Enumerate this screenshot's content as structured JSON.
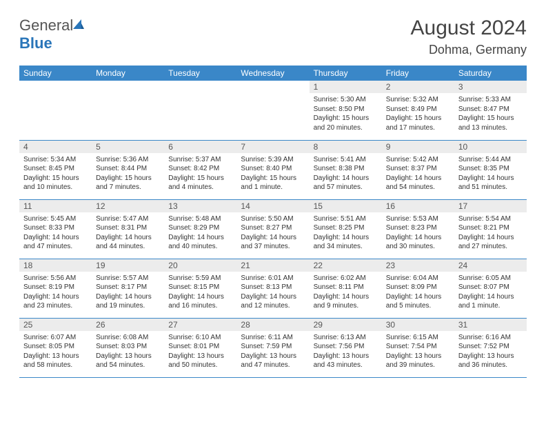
{
  "brand": {
    "part1": "General",
    "part2": "Blue"
  },
  "title": "August 2024",
  "location": "Dohma, Germany",
  "colors": {
    "header_bg": "#3a87c8",
    "header_text": "#ffffff",
    "daynum_bg": "#ececec",
    "border": "#3a87c8",
    "brand_blue": "#2975b9"
  },
  "day_headers": [
    "Sunday",
    "Monday",
    "Tuesday",
    "Wednesday",
    "Thursday",
    "Friday",
    "Saturday"
  ],
  "weeks": [
    [
      {
        "n": "",
        "sunrise": "",
        "sunset": "",
        "daylight": ""
      },
      {
        "n": "",
        "sunrise": "",
        "sunset": "",
        "daylight": ""
      },
      {
        "n": "",
        "sunrise": "",
        "sunset": "",
        "daylight": ""
      },
      {
        "n": "",
        "sunrise": "",
        "sunset": "",
        "daylight": ""
      },
      {
        "n": "1",
        "sunrise": "5:30 AM",
        "sunset": "8:50 PM",
        "daylight": "15 hours and 20 minutes."
      },
      {
        "n": "2",
        "sunrise": "5:32 AM",
        "sunset": "8:49 PM",
        "daylight": "15 hours and 17 minutes."
      },
      {
        "n": "3",
        "sunrise": "5:33 AM",
        "sunset": "8:47 PM",
        "daylight": "15 hours and 13 minutes."
      }
    ],
    [
      {
        "n": "4",
        "sunrise": "5:34 AM",
        "sunset": "8:45 PM",
        "daylight": "15 hours and 10 minutes."
      },
      {
        "n": "5",
        "sunrise": "5:36 AM",
        "sunset": "8:44 PM",
        "daylight": "15 hours and 7 minutes."
      },
      {
        "n": "6",
        "sunrise": "5:37 AM",
        "sunset": "8:42 PM",
        "daylight": "15 hours and 4 minutes."
      },
      {
        "n": "7",
        "sunrise": "5:39 AM",
        "sunset": "8:40 PM",
        "daylight": "15 hours and 1 minute."
      },
      {
        "n": "8",
        "sunrise": "5:41 AM",
        "sunset": "8:38 PM",
        "daylight": "14 hours and 57 minutes."
      },
      {
        "n": "9",
        "sunrise": "5:42 AM",
        "sunset": "8:37 PM",
        "daylight": "14 hours and 54 minutes."
      },
      {
        "n": "10",
        "sunrise": "5:44 AM",
        "sunset": "8:35 PM",
        "daylight": "14 hours and 51 minutes."
      }
    ],
    [
      {
        "n": "11",
        "sunrise": "5:45 AM",
        "sunset": "8:33 PM",
        "daylight": "14 hours and 47 minutes."
      },
      {
        "n": "12",
        "sunrise": "5:47 AM",
        "sunset": "8:31 PM",
        "daylight": "14 hours and 44 minutes."
      },
      {
        "n": "13",
        "sunrise": "5:48 AM",
        "sunset": "8:29 PM",
        "daylight": "14 hours and 40 minutes."
      },
      {
        "n": "14",
        "sunrise": "5:50 AM",
        "sunset": "8:27 PM",
        "daylight": "14 hours and 37 minutes."
      },
      {
        "n": "15",
        "sunrise": "5:51 AM",
        "sunset": "8:25 PM",
        "daylight": "14 hours and 34 minutes."
      },
      {
        "n": "16",
        "sunrise": "5:53 AM",
        "sunset": "8:23 PM",
        "daylight": "14 hours and 30 minutes."
      },
      {
        "n": "17",
        "sunrise": "5:54 AM",
        "sunset": "8:21 PM",
        "daylight": "14 hours and 27 minutes."
      }
    ],
    [
      {
        "n": "18",
        "sunrise": "5:56 AM",
        "sunset": "8:19 PM",
        "daylight": "14 hours and 23 minutes."
      },
      {
        "n": "19",
        "sunrise": "5:57 AM",
        "sunset": "8:17 PM",
        "daylight": "14 hours and 19 minutes."
      },
      {
        "n": "20",
        "sunrise": "5:59 AM",
        "sunset": "8:15 PM",
        "daylight": "14 hours and 16 minutes."
      },
      {
        "n": "21",
        "sunrise": "6:01 AM",
        "sunset": "8:13 PM",
        "daylight": "14 hours and 12 minutes."
      },
      {
        "n": "22",
        "sunrise": "6:02 AM",
        "sunset": "8:11 PM",
        "daylight": "14 hours and 9 minutes."
      },
      {
        "n": "23",
        "sunrise": "6:04 AM",
        "sunset": "8:09 PM",
        "daylight": "14 hours and 5 minutes."
      },
      {
        "n": "24",
        "sunrise": "6:05 AM",
        "sunset": "8:07 PM",
        "daylight": "14 hours and 1 minute."
      }
    ],
    [
      {
        "n": "25",
        "sunrise": "6:07 AM",
        "sunset": "8:05 PM",
        "daylight": "13 hours and 58 minutes."
      },
      {
        "n": "26",
        "sunrise": "6:08 AM",
        "sunset": "8:03 PM",
        "daylight": "13 hours and 54 minutes."
      },
      {
        "n": "27",
        "sunrise": "6:10 AM",
        "sunset": "8:01 PM",
        "daylight": "13 hours and 50 minutes."
      },
      {
        "n": "28",
        "sunrise": "6:11 AM",
        "sunset": "7:59 PM",
        "daylight": "13 hours and 47 minutes."
      },
      {
        "n": "29",
        "sunrise": "6:13 AM",
        "sunset": "7:56 PM",
        "daylight": "13 hours and 43 minutes."
      },
      {
        "n": "30",
        "sunrise": "6:15 AM",
        "sunset": "7:54 PM",
        "daylight": "13 hours and 39 minutes."
      },
      {
        "n": "31",
        "sunrise": "6:16 AM",
        "sunset": "7:52 PM",
        "daylight": "13 hours and 36 minutes."
      }
    ]
  ],
  "labels": {
    "sunrise": "Sunrise: ",
    "sunset": "Sunset: ",
    "daylight": "Daylight: "
  }
}
